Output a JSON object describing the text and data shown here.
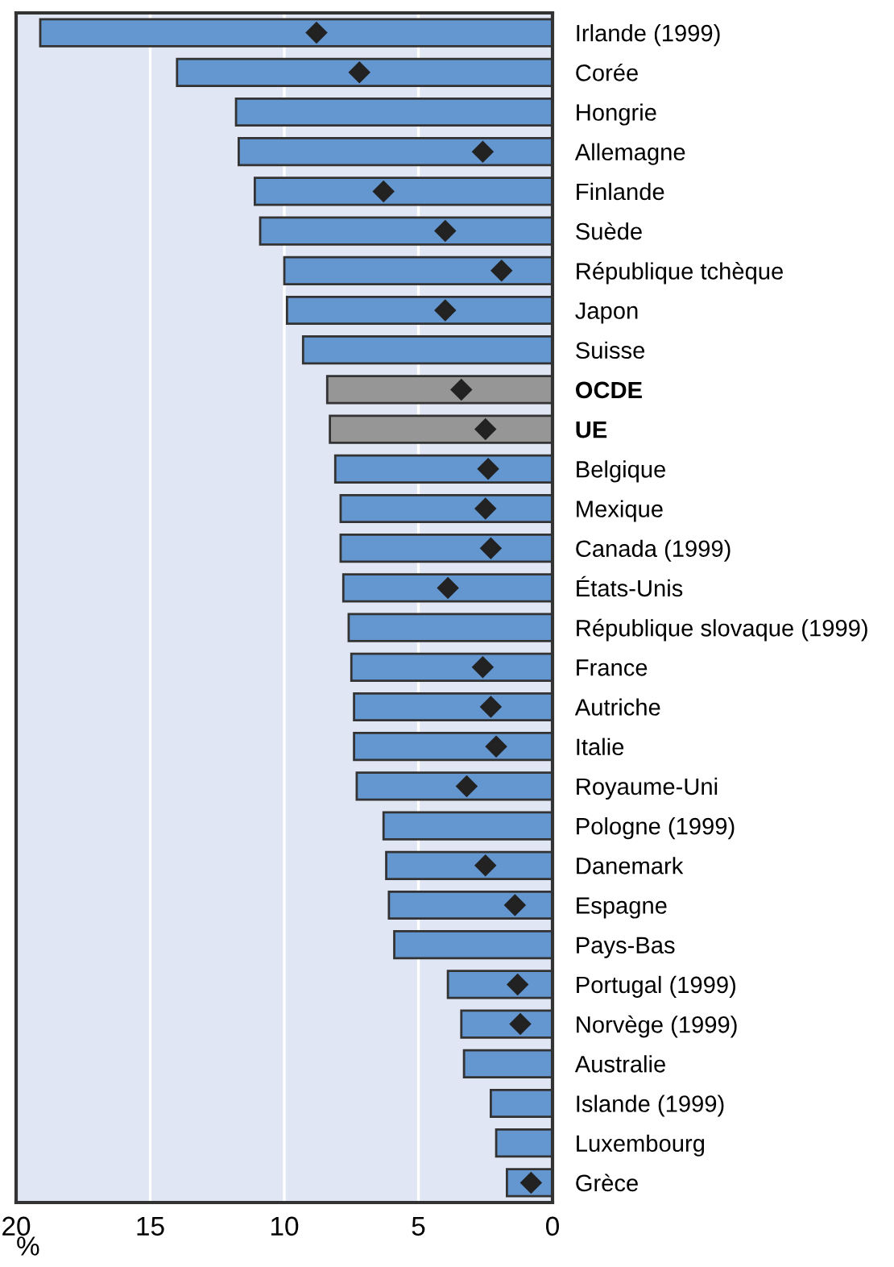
{
  "chart_data": {
    "type": "bar",
    "orientation": "horizontal",
    "xlabel": "%",
    "categories": [
      "Irlande (1999)",
      "Corée",
      "Hongrie",
      "Allemagne",
      "Finlande",
      "Suède",
      "République tchèque",
      "Japon",
      "Suisse",
      "OCDE",
      "UE",
      "Belgique",
      "Mexique",
      "Canada (1999)",
      "États-Unis",
      "République slovaque (1999)",
      "France",
      "Autriche",
      "Italie",
      "Royaume-Uni",
      "Pologne (1999)",
      "Danemark",
      "Espagne",
      "Pays-Bas",
      "Portugal (1999)",
      "Norvège (1999)",
      "Australie",
      "Islande (1999)",
      "Luxembourg",
      "Grèce"
    ],
    "series": [
      {
        "values": [
          19.1,
          14.0,
          11.8,
          11.7,
          11.1,
          10.9,
          10.0,
          9.9,
          9.3,
          8.4,
          8.3,
          8.1,
          7.9,
          7.9,
          7.8,
          7.6,
          7.5,
          7.4,
          7.4,
          7.3,
          6.3,
          6.2,
          6.1,
          5.9,
          3.9,
          3.4,
          3.3,
          2.3,
          2.1,
          1.7
        ],
        "colors": [
          "#6496d0",
          "#6496d0",
          "#6496d0",
          "#6496d0",
          "#6496d0",
          "#6496d0",
          "#6496d0",
          "#6496d0",
          "#6496d0",
          "#969696",
          "#969696",
          "#6496d0",
          "#6496d0",
          "#6496d0",
          "#6496d0",
          "#6496d0",
          "#6496d0",
          "#6496d0",
          "#6496d0",
          "#6496d0",
          "#6496d0",
          "#6496d0",
          "#6496d0",
          "#6496d0",
          "#6496d0",
          "#6496d0",
          "#6496d0",
          "#6496d0",
          "#6496d0",
          "#6496d0"
        ]
      },
      {
        "type": "scatter",
        "marker": "diamond",
        "color": "#222222",
        "values": [
          8.8,
          7.2,
          null,
          2.6,
          6.3,
          4.0,
          1.9,
          4.0,
          null,
          3.4,
          2.5,
          2.4,
          2.5,
          2.3,
          3.9,
          null,
          2.6,
          2.3,
          2.1,
          3.2,
          null,
          2.5,
          1.4,
          null,
          1.3,
          1.2,
          null,
          null,
          null,
          0.8
        ]
      }
    ],
    "xlim": [
      20,
      0
    ],
    "xticks": [
      20,
      15,
      10,
      5,
      0
    ],
    "grid": "x",
    "legend": false
  }
}
